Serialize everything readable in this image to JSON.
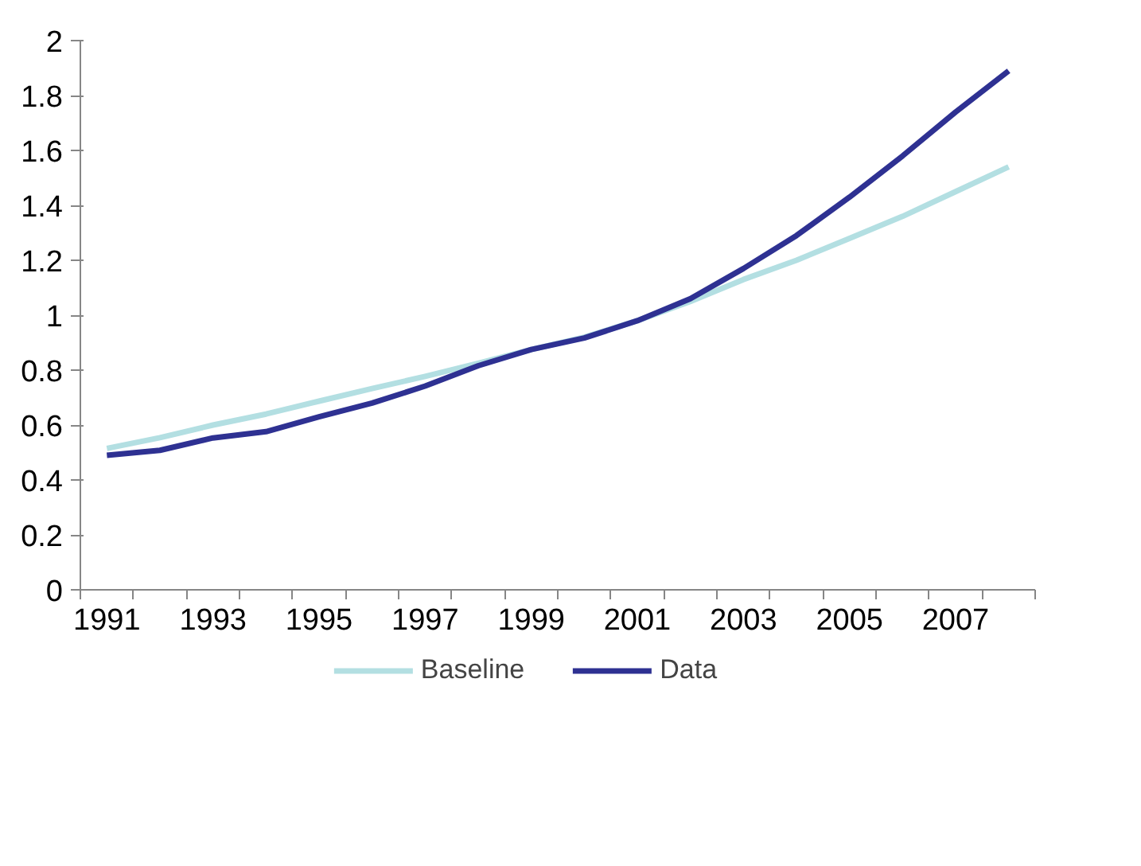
{
  "chart_data": {
    "type": "line",
    "categories": [
      "1991",
      null,
      "1993",
      null,
      "1995",
      null,
      "1997",
      null,
      "1999",
      null,
      "2001",
      null,
      "2003",
      null,
      "2005",
      null,
      "2007",
      null
    ],
    "series": [
      {
        "name": "Baseline",
        "color": "#b3dfe2",
        "values": [
          0.515,
          0.554,
          0.6,
          0.64,
          0.687,
          0.733,
          0.777,
          0.825,
          0.875,
          0.92,
          0.98,
          1.05,
          1.13,
          1.2,
          1.28,
          1.36,
          1.45,
          1.54
        ]
      },
      {
        "name": "Data",
        "color": "#2e3192",
        "values": [
          0.49,
          0.508,
          0.553,
          0.576,
          0.63,
          0.68,
          0.742,
          0.816,
          0.875,
          0.917,
          0.98,
          1.06,
          1.17,
          1.29,
          1.43,
          1.58,
          1.74,
          1.89
        ]
      }
    ],
    "ylim": [
      0,
      2
    ],
    "yticks": [
      0,
      0.2,
      0.4,
      0.6,
      0.8,
      1,
      1.2,
      1.4,
      1.6,
      1.8,
      2
    ],
    "grid": false,
    "legend": "bottom",
    "marker": "none",
    "line_style": "solid"
  }
}
